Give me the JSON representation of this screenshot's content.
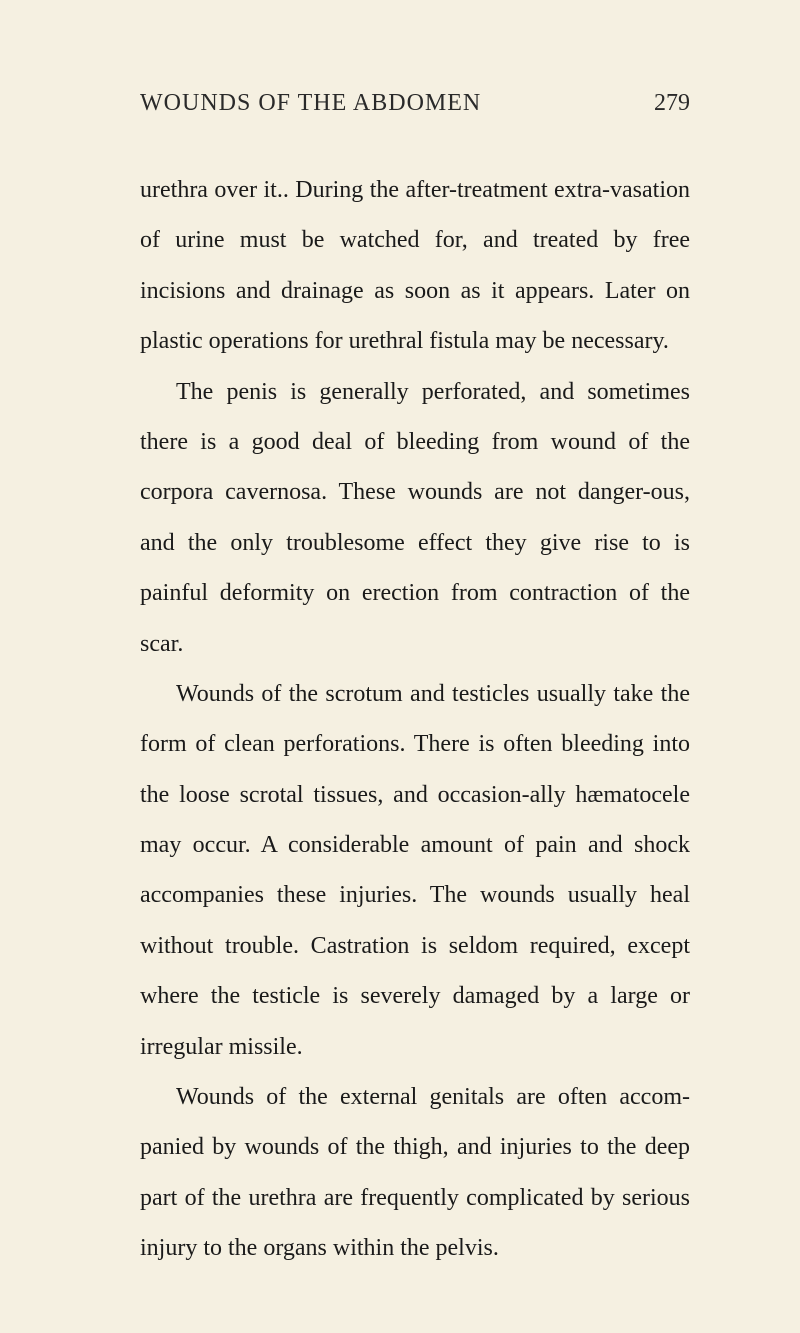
{
  "header": {
    "running_title": "WOUNDS OF THE ABDOMEN",
    "page_number": "279"
  },
  "paragraphs": [
    {
      "text": "urethra over it.. During the after-treatment extra-vasation of urine must be watched for, and treated by free incisions and drainage as soon as it appears. Later on plastic operations for urethral fistula may be necessary.",
      "indent": false
    },
    {
      "text": "The penis is generally perforated, and sometimes there is a good deal of bleeding from wound of the corpora cavernosa. These wounds are not danger-ous, and the only troublesome effect they give rise to is painful deformity on erection from contraction of the scar.",
      "indent": true
    },
    {
      "text": "Wounds of the scrotum and testicles usually take the form of clean perforations. There is often bleeding into the loose scrotal tissues, and occasion-ally hæmatocele may occur. A considerable amount of pain and shock accompanies these injuries. The wounds usually heal without trouble. Castration is seldom required, except where the testicle is severely damaged by a large or irregular missile.",
      "indent": true
    },
    {
      "text": "Wounds of the external genitals are often accom-panied by wounds of the thigh, and injuries to the deep part of the urethra are frequently complicated by serious injury to the organs within the pelvis.",
      "indent": true
    }
  ],
  "typography": {
    "header_fontsize": 24,
    "page_number_fontsize": 24,
    "body_fontsize": 24,
    "line_height": 2.1,
    "text_color": "#1a1a1a",
    "background_color": "#f5f0e1"
  }
}
